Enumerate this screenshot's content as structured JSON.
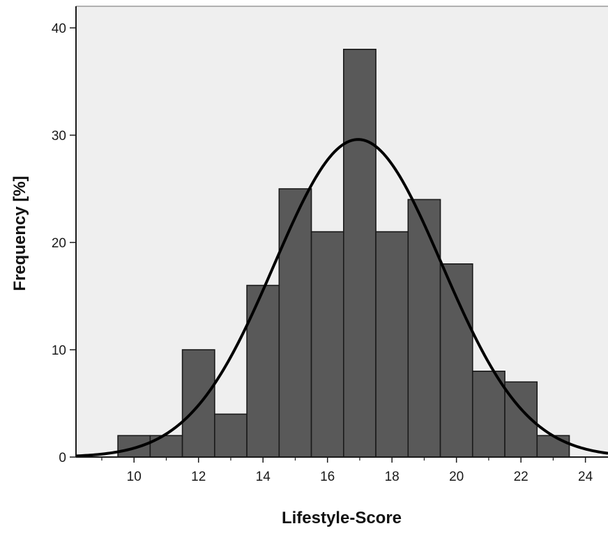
{
  "chart_data": {
    "type": "bar",
    "title": "",
    "xlabel": "Lifestyle-Score",
    "ylabel": "Frequency [%]",
    "xlim": [
      8.2,
      24.7
    ],
    "ylim": [
      0,
      42
    ],
    "x_ticks": [
      10,
      12,
      14,
      16,
      18,
      20,
      22,
      24
    ],
    "x_minor_ticks": [
      9,
      11,
      13,
      15,
      17,
      19,
      21,
      23
    ],
    "y_ticks": [
      0,
      10,
      20,
      30,
      40
    ],
    "bins": [
      {
        "x": 10,
        "value": 2
      },
      {
        "x": 11,
        "value": 2
      },
      {
        "x": 12,
        "value": 10
      },
      {
        "x": 13,
        "value": 4
      },
      {
        "x": 14,
        "value": 16
      },
      {
        "x": 15,
        "value": 25
      },
      {
        "x": 16,
        "value": 21
      },
      {
        "x": 17,
        "value": 38
      },
      {
        "x": 18,
        "value": 21
      },
      {
        "x": 19,
        "value": 24
      },
      {
        "x": 20,
        "value": 18
      },
      {
        "x": 21,
        "value": 8
      },
      {
        "x": 22,
        "value": 7
      },
      {
        "x": 23,
        "value": 2
      }
    ],
    "bin_width": 1,
    "normal_curve": {
      "mean": 16.95,
      "sd": 2.6,
      "peak": 29.6
    },
    "grid": false,
    "colors": {
      "bar_fill": "#595959",
      "bar_stroke": "#1a1a1a",
      "curve": "#000000",
      "plot_background": "#efefef",
      "axis": "#1a1a1a",
      "frame": "#9a9a9a"
    }
  }
}
